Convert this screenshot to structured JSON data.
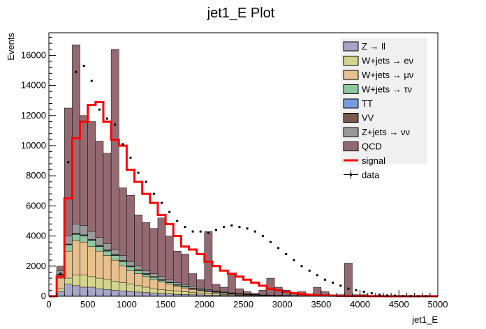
{
  "chart_data": {
    "type": "bar",
    "title": "jet1_E Plot",
    "xlabel": "jet1_E",
    "ylabel": "Events",
    "xlim": [
      0,
      5000
    ],
    "ylim": [
      0,
      17500
    ],
    "bin_width": 100,
    "x_ticks": [
      0,
      500,
      1000,
      1500,
      2000,
      2500,
      3000,
      3500,
      4000,
      4500,
      5000
    ],
    "y_ticks": [
      0,
      2000,
      4000,
      6000,
      8000,
      10000,
      12000,
      14000,
      16000
    ],
    "x_tick_labels": [
      "0",
      "500",
      "1000",
      "1500",
      "2000",
      "2500",
      "3000",
      "3500",
      "4000",
      "4500",
      "5000"
    ],
    "y_tick_labels": [
      "0",
      "2000",
      "4000",
      "6000",
      "8000",
      "10000",
      "12000",
      "14000",
      "16000"
    ],
    "legend_position": "top-right",
    "stack_cumulative": {
      "Z_ll": [
        0,
        300,
        800,
        700,
        600,
        600,
        500,
        450,
        400,
        350,
        300,
        280,
        250,
        200,
        180,
        150,
        130,
        110,
        100,
        90,
        80,
        70,
        60,
        50,
        40,
        30,
        20,
        20,
        15,
        10,
        10,
        5,
        5,
        0,
        0,
        0,
        0,
        0,
        0,
        0,
        0,
        0,
        0,
        0,
        0,
        0,
        0,
        0,
        0,
        0
      ],
      "W_enu": [
        0,
        500,
        1200,
        1400,
        1400,
        1300,
        1200,
        1100,
        1000,
        900,
        800,
        700,
        600,
        500,
        450,
        400,
        350,
        300,
        250,
        200,
        180,
        150,
        120,
        100,
        80,
        60,
        50,
        40,
        30,
        20,
        20,
        10,
        10,
        5,
        5,
        0,
        0,
        0,
        0,
        0,
        0,
        0,
        0,
        0,
        0,
        0,
        0,
        0,
        0,
        0
      ],
      "W_munu": [
        0,
        1200,
        3000,
        3700,
        3600,
        3300,
        3000,
        2700,
        2400,
        2000,
        1700,
        1500,
        1300,
        1100,
        950,
        800,
        650,
        550,
        450,
        350,
        300,
        250,
        200,
        150,
        120,
        100,
        80,
        60,
        50,
        40,
        30,
        20,
        15,
        10,
        10,
        0,
        0,
        0,
        0,
        0,
        0,
        0,
        0,
        0,
        0,
        0,
        0,
        0,
        0,
        0
      ],
      "W_taunu": [
        0,
        1400,
        3400,
        4100,
        4000,
        3700,
        3300,
        3000,
        2700,
        2300,
        1950,
        1700,
        1450,
        1250,
        1050,
        900,
        730,
        620,
        510,
        400,
        340,
        280,
        230,
        170,
        140,
        110,
        90,
        70,
        55,
        45,
        35,
        22,
        18,
        12,
        12,
        0,
        0,
        0,
        0,
        0,
        0,
        0,
        0,
        0,
        0,
        0,
        0,
        0,
        0,
        0
      ],
      "TT": [
        0,
        1420,
        3430,
        4130,
        4030,
        3730,
        3330,
        3030,
        2730,
        2330,
        1970,
        1720,
        1470,
        1270,
        1070,
        910,
        740,
        630,
        520,
        410,
        350,
        290,
        240,
        180,
        150,
        115,
        95,
        72,
        57,
        46,
        36,
        23,
        19,
        13,
        13,
        0,
        0,
        0,
        0,
        0,
        0,
        0,
        0,
        0,
        0,
        0,
        0,
        0,
        0,
        0
      ],
      "VV": [
        0,
        1450,
        3470,
        4180,
        4080,
        3780,
        3380,
        3080,
        2780,
        2380,
        2010,
        1760,
        1500,
        1300,
        1100,
        940,
        760,
        650,
        540,
        430,
        370,
        305,
        255,
        190,
        160,
        122,
        100,
        76,
        60,
        48,
        38,
        24,
        20,
        14,
        14,
        0,
        0,
        0,
        0,
        0,
        0,
        0,
        0,
        0,
        0,
        0,
        0,
        0,
        0,
        0
      ],
      "Z_nunu": [
        0,
        1700,
        4000,
        4800,
        4700,
        4300,
        3900,
        3500,
        3100,
        2700,
        2300,
        2000,
        1700,
        1500,
        1300,
        1100,
        900,
        780,
        650,
        520,
        450,
        370,
        310,
        230,
        190,
        150,
        120,
        90,
        70,
        55,
        45,
        28,
        22,
        16,
        16,
        0,
        0,
        0,
        0,
        0,
        0,
        0,
        0,
        0,
        0,
        0,
        0,
        0,
        0,
        0
      ],
      "QCD": [
        0,
        2000,
        12500,
        16700,
        12000,
        11600,
        10300,
        9500,
        16400,
        7200,
        6700,
        5400,
        4900,
        4500,
        5200,
        4000,
        3000,
        2800,
        1500,
        1100,
        4300,
        800,
        600,
        1500,
        500,
        300,
        200,
        400,
        1200,
        600,
        400,
        100,
        300,
        100,
        600,
        300,
        100,
        100,
        2200,
        100,
        100,
        0,
        0,
        0,
        0,
        0,
        0,
        0,
        0,
        0
      ]
    },
    "series": [
      {
        "name": "Z → ll",
        "color": "#a6a6c8"
      },
      {
        "name": "W+jets → eν",
        "color": "#d4d48e"
      },
      {
        "name": "W+jets → μν",
        "color": "#e6c08e"
      },
      {
        "name": "W+jets → τν",
        "color": "#8ec8a0"
      },
      {
        "name": "TT",
        "color": "#7b9cdc"
      },
      {
        "name": "VV",
        "color": "#7a5a4e"
      },
      {
        "name": "Z+jets → νν",
        "color": "#9a9a9a"
      },
      {
        "name": "QCD",
        "color": "#946a72"
      }
    ],
    "signal": {
      "name": "signal",
      "color": "#ff0000",
      "values": [
        0,
        1300,
        6500,
        10500,
        11600,
        12700,
        12900,
        11600,
        10400,
        10000,
        8400,
        7600,
        6800,
        6200,
        5400,
        4800,
        4000,
        3300,
        3100,
        2800,
        2300,
        2000,
        1700,
        1500,
        1300,
        1100,
        900,
        700,
        500,
        400,
        300,
        200,
        150,
        100,
        80,
        60,
        40,
        30,
        20,
        15,
        10,
        5,
        5,
        0,
        0,
        0,
        0,
        0,
        0,
        0
      ]
    },
    "data": {
      "name": "data",
      "color": "#000000",
      "values": [
        0,
        1500,
        8900,
        14900,
        15300,
        14300,
        12400,
        11800,
        11400,
        10100,
        9200,
        8200,
        7600,
        6800,
        6200,
        5600,
        5000,
        4600,
        4300,
        4300,
        4200,
        4400,
        4600,
        4700,
        4600,
        4500,
        4300,
        4000,
        3600,
        3200,
        2800,
        2400,
        2000,
        1700,
        1400,
        1100,
        900,
        700,
        500,
        400,
        300,
        200,
        100,
        50,
        40,
        20,
        10,
        5,
        5,
        0
      ]
    }
  }
}
